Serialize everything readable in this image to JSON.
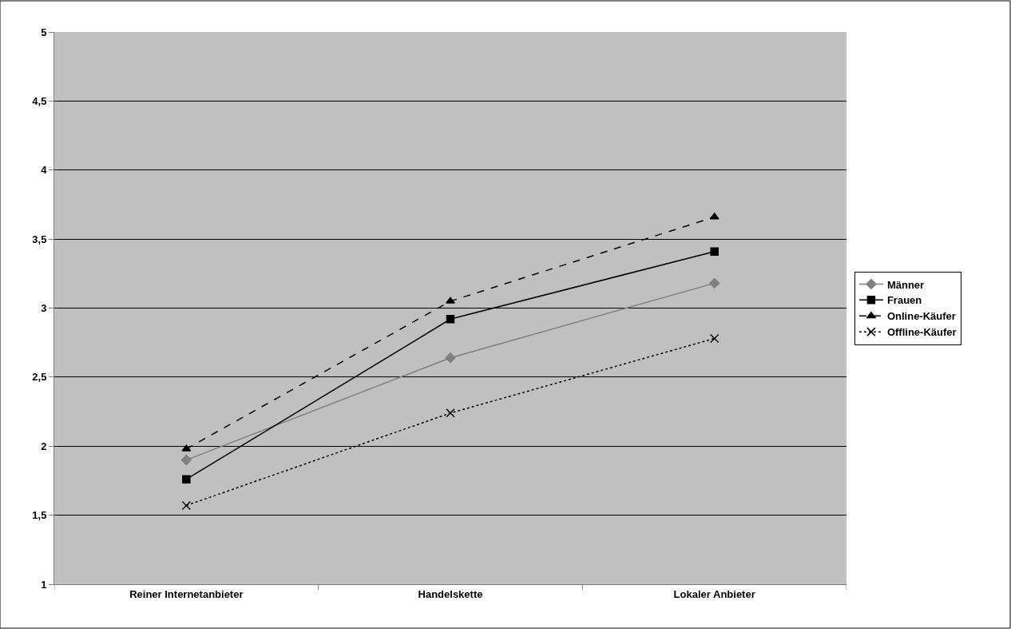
{
  "chart_data": {
    "type": "line",
    "categories": [
      "Reiner Internetanbieter",
      "Handelskette",
      "Lokaler Anbieter"
    ],
    "series": [
      {
        "name": "Männer",
        "color": "#808080",
        "values": [
          1.9,
          2.64,
          3.18
        ],
        "marker": "diamond",
        "line_style": "solid"
      },
      {
        "name": "Frauen",
        "color": "#000000",
        "values": [
          1.76,
          2.92,
          3.41
        ],
        "marker": "square",
        "line_style": "solid"
      },
      {
        "name": "Online-Käufer",
        "color": "#000000",
        "values": [
          1.98,
          3.05,
          3.66
        ],
        "marker": "triangle",
        "line_style": "dashed"
      },
      {
        "name": "Offline-Käufer",
        "color": "#000000",
        "values": [
          1.57,
          2.24,
          2.78
        ],
        "marker": "cross",
        "line_style": "dotted"
      }
    ],
    "ylim": [
      1,
      5
    ],
    "yticks": [
      1,
      {
        "value": 1.5,
        "label": "1,5"
      },
      2,
      {
        "value": 2.5,
        "label": "2,5"
      },
      3,
      {
        "value": 3.5,
        "label": "3,5"
      },
      4,
      {
        "value": 4.5,
        "label": "4,5"
      },
      5
    ],
    "grid": "y",
    "legend": "right"
  }
}
